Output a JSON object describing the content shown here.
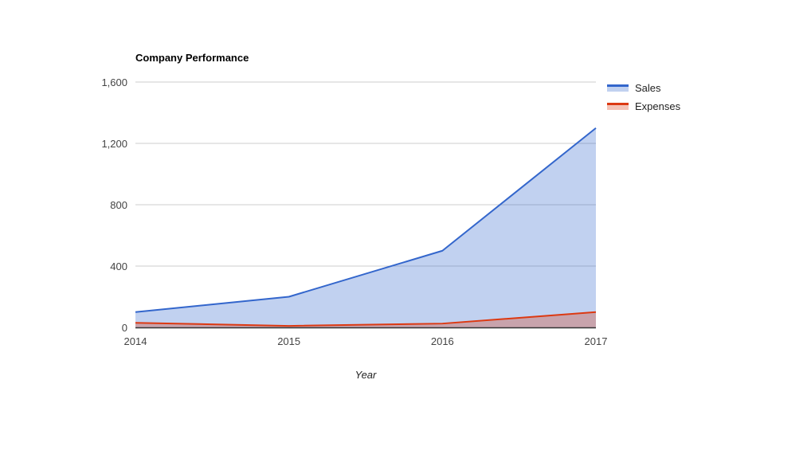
{
  "chart_data": {
    "type": "area",
    "title": "Company Performance",
    "xlabel": "Year",
    "ylabel": "",
    "categories": [
      "2014",
      "2015",
      "2016",
      "2017"
    ],
    "series": [
      {
        "name": "Sales",
        "values": [
          100,
          200,
          500,
          1300
        ],
        "line_color": "#3366cc",
        "fill_color": "rgba(51,102,204,0.3)"
      },
      {
        "name": "Expenses",
        "values": [
          30,
          10,
          25,
          100
        ],
        "line_color": "#dc3912",
        "fill_color": "rgba(220,57,18,0.3)"
      }
    ],
    "ylim": [
      0,
      1600
    ],
    "yticks": [
      0,
      400,
      800,
      1200,
      1600
    ],
    "ytick_labels": [
      "0",
      "400",
      "800",
      "1,200",
      "1,600"
    ],
    "grid": "horizontal",
    "legend_position": "right",
    "colors": {
      "gridline": "#cccccc",
      "baseline": "#333333",
      "tick_label": "#444444",
      "axis_title": "#222222",
      "legend_label": "#222222",
      "title": "#000000",
      "background": "#ffffff"
    }
  }
}
